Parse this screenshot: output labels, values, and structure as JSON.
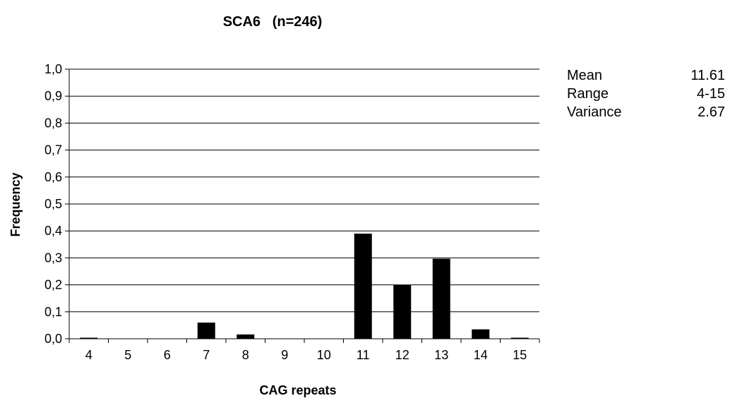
{
  "chart_data": {
    "type": "bar",
    "title": "SCA6   (n=246)",
    "xlabel": "CAG repeats",
    "ylabel": "Frequency",
    "categories": [
      "4",
      "5",
      "6",
      "7",
      "8",
      "9",
      "10",
      "11",
      "12",
      "13",
      "14",
      "15"
    ],
    "values": [
      0.004,
      0,
      0,
      0.06,
      0.016,
      0,
      0,
      0.39,
      0.199,
      0.297,
      0.035,
      0.004
    ],
    "ylim": [
      0,
      1.0
    ],
    "yticks": [
      "0,0",
      "0,1",
      "0,2",
      "0,3",
      "0,4",
      "0,5",
      "0,6",
      "0,7",
      "0,8",
      "0,9",
      "1,0"
    ],
    "grid": true,
    "bar_color": "#000000",
    "stats": [
      {
        "label": "Mean",
        "value": "11.61"
      },
      {
        "label": "Range",
        "value": "4-15"
      },
      {
        "label": "Variance",
        "value": "2.67"
      }
    ]
  }
}
